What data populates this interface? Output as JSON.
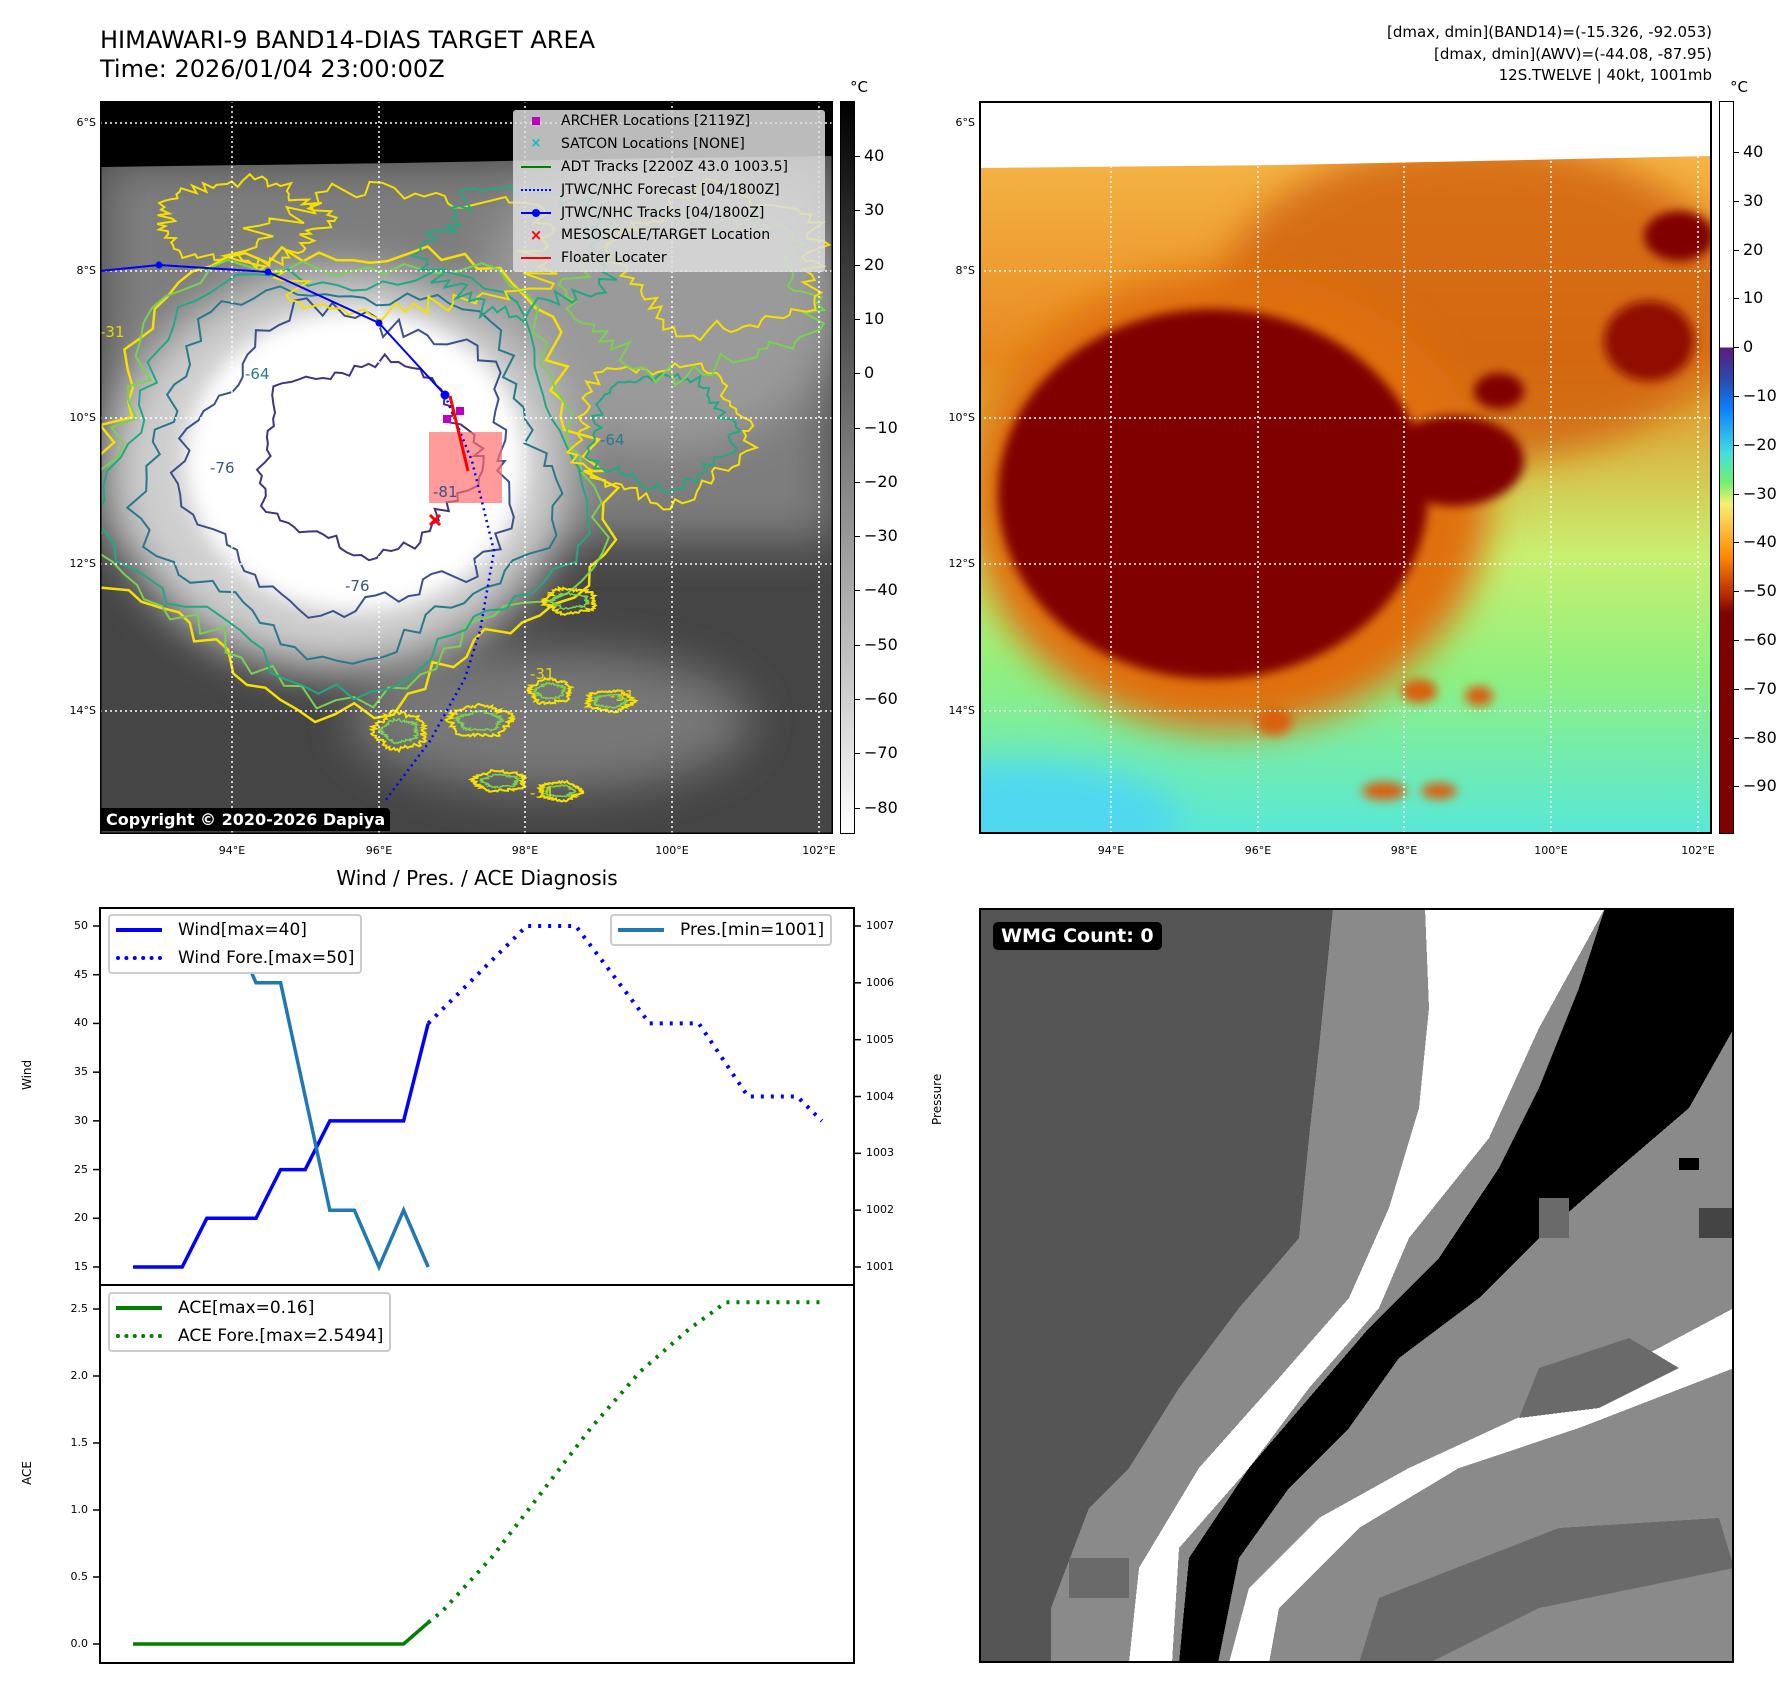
{
  "header": {
    "title_line1": "HIMAWARI-9 BAND14-DIAS TARGET AREA",
    "title_line2": "Time: 2026/01/04 23:00:00Z",
    "info_line1": "[dmax, dmin](BAND14)=(-15.326, -92.053)",
    "info_line2": "[dmax, dmin](AWV)=(-44.08, -87.95)",
    "info_line3": "12S.TWELVE | 40kt, 1001mb"
  },
  "map_ir": {
    "lat_ticks": [
      "6°S",
      "8°S",
      "10°S",
      "12°S",
      "14°S"
    ],
    "lon_ticks": [
      "94°E",
      "96°E",
      "98°E",
      "100°E",
      "102°E"
    ],
    "contour_labels": [
      "-31",
      "-64",
      "-76",
      "-81",
      "-31",
      "-31",
      "-64",
      "-76",
      "-31"
    ],
    "copyright": "Copyright © 2020-2026 Dapiya",
    "legend": [
      {
        "label": "ARCHER Locations [2119Z]",
        "color": "#c000c0",
        "symbol": "square"
      },
      {
        "label": "SATCON Locations [NONE]",
        "color": "#00bfbf",
        "symbol": "x"
      },
      {
        "label": "ADT Tracks [2200Z 43.0 1003.5]",
        "color": "#008000",
        "symbol": "line"
      },
      {
        "label": "JTWC/NHC Forecast [04/1800Z]",
        "color": "#0000ff",
        "symbol": "dotted"
      },
      {
        "label": "JTWC/NHC Tracks [04/1800Z]",
        "color": "#0000ff",
        "symbol": "line-dot"
      },
      {
        "label": "MESOSCALE/TARGET Location",
        "color": "#ff0000",
        "symbol": "x"
      },
      {
        "label": "Floater Locater",
        "color": "#ff0000",
        "symbol": "line"
      }
    ],
    "colorbar": {
      "unit": "°C",
      "ticks": [
        "40",
        "30",
        "20",
        "10",
        "0",
        "−10",
        "−20",
        "−30",
        "−40",
        "−50",
        "−60",
        "−70",
        "−80"
      ]
    }
  },
  "map_color": {
    "lat_ticks": [
      "6°S",
      "8°S",
      "10°S",
      "12°S",
      "14°S"
    ],
    "lon_ticks": [
      "94°E",
      "96°E",
      "98°E",
      "100°E",
      "102°E"
    ],
    "colorbar": {
      "unit": "°C",
      "ticks": [
        "40",
        "30",
        "20",
        "10",
        "0",
        "−10",
        "−20",
        "−30",
        "−40",
        "−50",
        "−60",
        "−70",
        "−80",
        "−90"
      ]
    }
  },
  "wmg": {
    "label": "WMG Count: 0"
  },
  "chart_data": [
    {
      "type": "line",
      "title": "Wind / Pres. / ACE Diagnosis",
      "ylabel": "Wind",
      "y2label": "Pressure",
      "ylim": [
        15,
        50
      ],
      "y2lim": [
        1001,
        1007
      ],
      "xlim": [
        0,
        28
      ],
      "yticks": [
        "15",
        "20",
        "25",
        "30",
        "35",
        "40",
        "45",
        "50"
      ],
      "y2ticks": [
        "1001",
        "1002",
        "1003",
        "1004",
        "1005",
        "1006",
        "1007"
      ],
      "series": [
        {
          "name": "Wind[max=40]",
          "color": "#0000ff",
          "style": "solid",
          "axis": "left",
          "x": [
            0,
            1,
            2,
            3,
            4,
            5,
            6,
            7,
            8,
            9,
            10,
            11,
            12
          ],
          "values": [
            15,
            15,
            15,
            20,
            20,
            20,
            25,
            25,
            30,
            30,
            30,
            30,
            40
          ]
        },
        {
          "name": "Wind Fore.[max=50]",
          "color": "#0000ff",
          "style": "dotted",
          "axis": "left",
          "x": [
            12,
            16,
            18,
            21,
            23,
            25,
            27,
            28
          ],
          "values": [
            40,
            50,
            50,
            40,
            40,
            32.5,
            32.5,
            30
          ]
        },
        {
          "name": "Pres.[min=1001]",
          "color": "#1f77b4",
          "style": "solid",
          "axis": "right",
          "x": [
            0,
            1,
            2,
            3,
            4,
            5,
            6,
            7,
            8,
            9,
            10,
            11,
            12
          ],
          "values": [
            1007,
            1007,
            1007,
            1007,
            1007,
            1006,
            1006,
            1004,
            1002,
            1002,
            1001,
            1002,
            1001
          ]
        }
      ]
    },
    {
      "type": "line",
      "ylabel": "ACE",
      "ylim": [
        0,
        2.5
      ],
      "xlim": [
        0,
        28
      ],
      "yticks": [
        "0.0",
        "0.5",
        "1.0",
        "1.5",
        "2.0",
        "2.5"
      ],
      "series": [
        {
          "name": "ACE[max=0.16]",
          "color": "#008000",
          "style": "solid",
          "x": [
            0,
            1,
            2,
            3,
            4,
            5,
            6,
            7,
            8,
            9,
            10,
            11,
            12
          ],
          "values": [
            0,
            0,
            0,
            0,
            0,
            0,
            0,
            0,
            0,
            0,
            0,
            0,
            0.16
          ]
        },
        {
          "name": "ACE Fore.[max=2.5494]",
          "color": "#008000",
          "style": "dotted",
          "x": [
            12,
            12.6,
            14.6,
            16.6,
            18.6,
            20.6,
            22.6,
            24.1,
            28
          ],
          "values": [
            0.16,
            0.25,
            0.65,
            1.13,
            1.61,
            2.03,
            2.35,
            2.55,
            2.55
          ]
        }
      ]
    }
  ]
}
